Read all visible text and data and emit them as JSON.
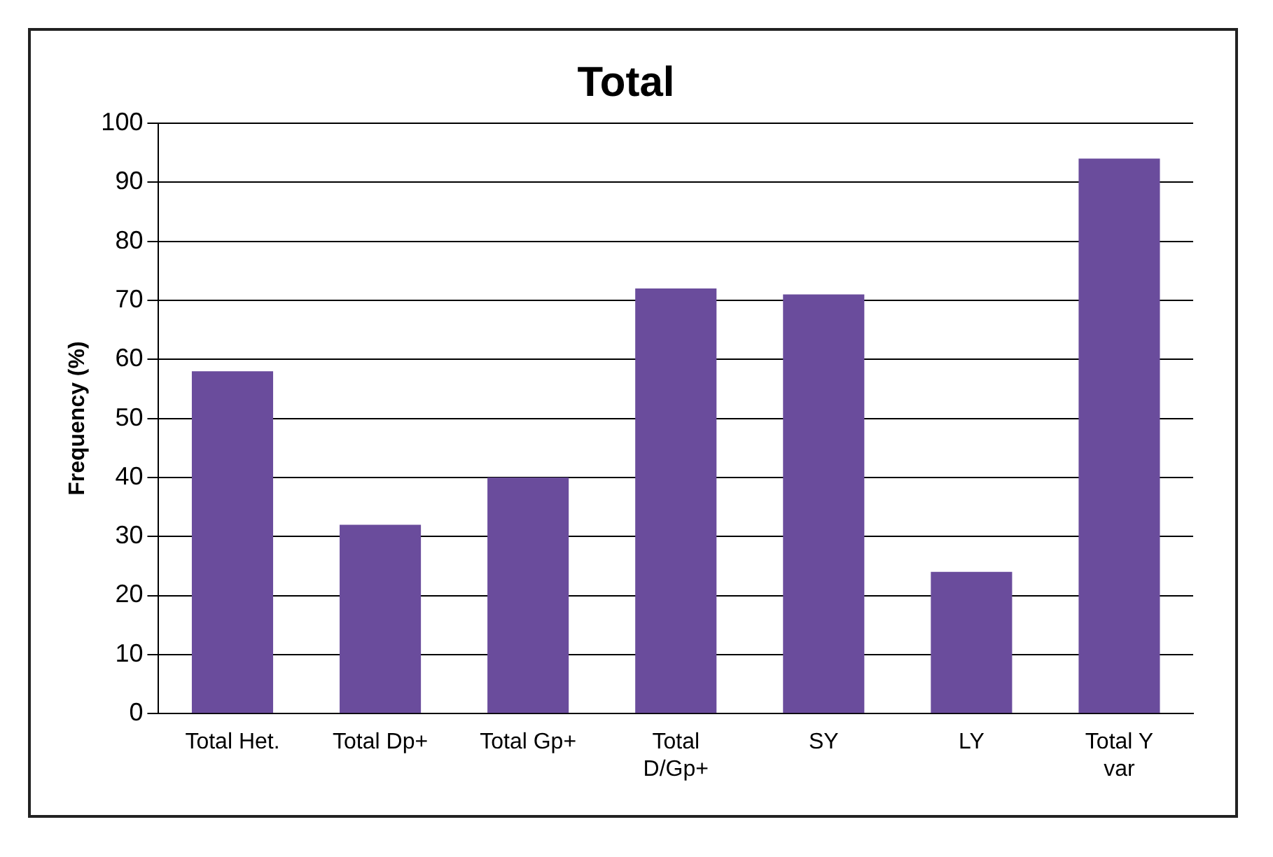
{
  "chart_data": {
    "type": "bar",
    "title": "Total",
    "ylabel": "Frequency (%)",
    "categories": [
      "Total Het.",
      "Total Dp+",
      "Total Gp+",
      "Total D/Gp+",
      "SY",
      "LY",
      "Total Y var"
    ],
    "values": [
      58,
      32,
      40,
      72,
      71,
      24,
      94
    ],
    "color": "#6a4c9c",
    "ylim": [
      0,
      100
    ],
    "yticks": [
      0,
      10,
      20,
      30,
      40,
      50,
      60,
      70,
      80,
      90,
      100
    ],
    "grid": "y",
    "legend": false
  }
}
